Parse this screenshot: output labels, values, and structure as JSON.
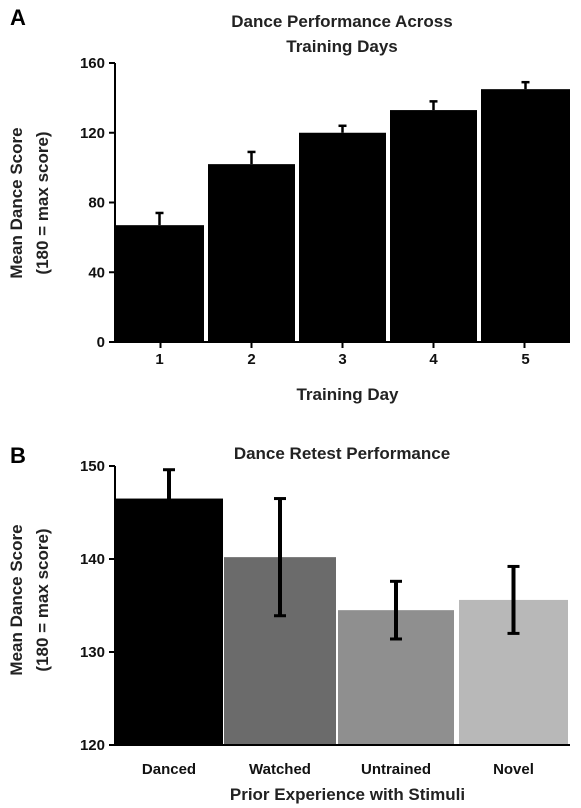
{
  "chart_data": [
    {
      "panel_label": "A",
      "type": "bar",
      "title": [
        "Dance Performance Across",
        "Training Days"
      ],
      "xlabel": "Training Day",
      "ylabel": [
        "Mean Dance Score",
        "(180 = max score)"
      ],
      "categories": [
        "1",
        "2",
        "3",
        "4",
        "5"
      ],
      "values": [
        67,
        102,
        120,
        133,
        145
      ],
      "errors": [
        7,
        7,
        4,
        5,
        4
      ],
      "ylim": [
        0,
        160
      ],
      "yticks": [
        "0",
        "40",
        "80",
        "120",
        "160"
      ],
      "bar_colors": [
        "#000000",
        "#000000",
        "#000000",
        "#000000",
        "#000000"
      ],
      "grid": false,
      "legend": "none"
    },
    {
      "panel_label": "B",
      "type": "bar",
      "title": [
        "Dance Retest Performance"
      ],
      "xlabel": "Prior Experience with Stimuli",
      "ylabel": [
        "Mean Dance Score",
        "(180 = max score)"
      ],
      "categories": [
        "Danced",
        "Watched",
        "Untrained",
        "Novel"
      ],
      "values": [
        146.5,
        140.2,
        134.5,
        135.6
      ],
      "errors": [
        3.1,
        6.3,
        3.1,
        3.6
      ],
      "ylim": [
        120,
        150
      ],
      "yticks": [
        "120",
        "130",
        "140",
        "150"
      ],
      "bar_colors": [
        "#000000",
        "#6b6b6b",
        "#8f8f8f",
        "#b8b8b8"
      ],
      "grid": false,
      "legend": "none"
    }
  ]
}
